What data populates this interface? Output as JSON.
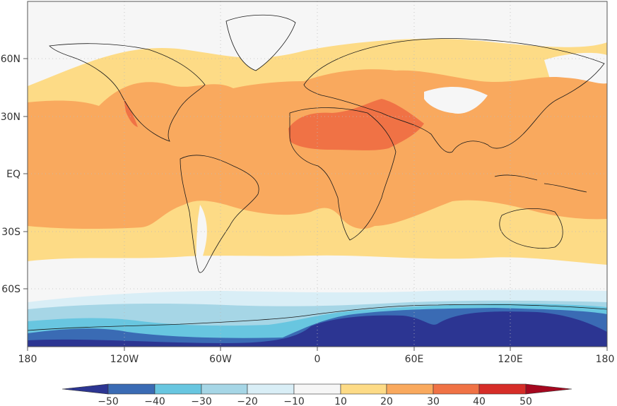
{
  "map": {
    "lon_ticks": [
      "180",
      "120W",
      "60W",
      "0",
      "60E",
      "120E",
      "180"
    ],
    "lat_ticks": [
      "60N",
      "30N",
      "EQ",
      "30S",
      "60S"
    ],
    "ocean_color": "#f6f6f6",
    "coastline_color": "#1a1a1a",
    "gridlines": "dotted"
  },
  "colorbar": {
    "labels": [
      "-50",
      "-40",
      "-30",
      "-20",
      "-10",
      "10",
      "20",
      "30",
      "40",
      "50"
    ],
    "bins": [
      {
        "range": "<-50",
        "color": "#2c3592"
      },
      {
        "range": "-50 to -40",
        "color": "#3a6bb4"
      },
      {
        "range": "-40 to -30",
        "color": "#68c6e0"
      },
      {
        "range": "-30 to -20",
        "color": "#a6d6e6"
      },
      {
        "range": "-20 to -10",
        "color": "#d9eef6"
      },
      {
        "range": "-10 to 10",
        "color": "#f6f6f6"
      },
      {
        "range": "10 to 20",
        "color": "#fddb86"
      },
      {
        "range": "20 to 30",
        "color": "#f9a95e"
      },
      {
        "range": "30 to 40",
        "color": "#f07245"
      },
      {
        "range": "40 to 50",
        "color": "#d62d28"
      },
      {
        "range": ">50",
        "color": "#a5081f"
      }
    ]
  }
}
